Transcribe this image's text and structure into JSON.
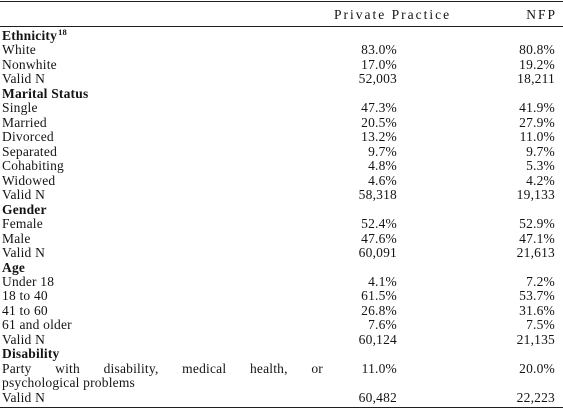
{
  "table": {
    "header": {
      "private_practice": "Private Practice",
      "nfp": "NFP"
    },
    "sections": [
      {
        "heading": "Ethnicity",
        "footnote": "18",
        "rows": [
          {
            "label": "White",
            "private_practice": "83.0%",
            "nfp": "80.8%"
          },
          {
            "label": "Nonwhite",
            "private_practice": "17.0%",
            "nfp": "19.2%"
          },
          {
            "label": "Valid N",
            "private_practice": "52,003",
            "nfp": "18,211"
          }
        ]
      },
      {
        "heading": "Marital Status",
        "rows": [
          {
            "label": "Single",
            "private_practice": "47.3%",
            "nfp": "41.9%"
          },
          {
            "label": "Married",
            "private_practice": "20.5%",
            "nfp": "27.9%"
          },
          {
            "label": "Divorced",
            "private_practice": "13.2%",
            "nfp": "11.0%"
          },
          {
            "label": "Separated",
            "private_practice": "9.7%",
            "nfp": "9.7%"
          },
          {
            "label": "Cohabiting",
            "private_practice": "4.8%",
            "nfp": "5.3%"
          },
          {
            "label": "Widowed",
            "private_practice": "4.6%",
            "nfp": "4.2%"
          },
          {
            "label": "Valid N",
            "private_practice": "58,318",
            "nfp": "19,133"
          }
        ]
      },
      {
        "heading": "Gender",
        "rows": [
          {
            "label": "Female",
            "private_practice": "52.4%",
            "nfp": "52.9%"
          },
          {
            "label": "Male",
            "private_practice": "47.6%",
            "nfp": "47.1%"
          },
          {
            "label": "Valid N",
            "private_practice": "60,091",
            "nfp": "21,613"
          }
        ]
      },
      {
        "heading": "Age",
        "rows": [
          {
            "label": "Under 18",
            "private_practice": "4.1%",
            "nfp": "7.2%"
          },
          {
            "label": "18 to 40",
            "private_practice": "61.5%",
            "nfp": "53.7%"
          },
          {
            "label": "41 to 60",
            "private_practice": "26.8%",
            "nfp": "31.6%"
          },
          {
            "label": "61 and older",
            "private_practice": "7.6%",
            "nfp": "7.5%"
          },
          {
            "label": "Valid N",
            "private_practice": "60,124",
            "nfp": "21,135"
          }
        ]
      },
      {
        "heading": "Disability",
        "rows": [
          {
            "label_lines": [
              "Party with disability, medical health, or",
              "psychological problems"
            ],
            "private_practice": "11.0%",
            "nfp": "20.0%"
          },
          {
            "label": "Valid N",
            "private_practice": "60,482",
            "nfp": "22,223"
          }
        ]
      }
    ]
  }
}
